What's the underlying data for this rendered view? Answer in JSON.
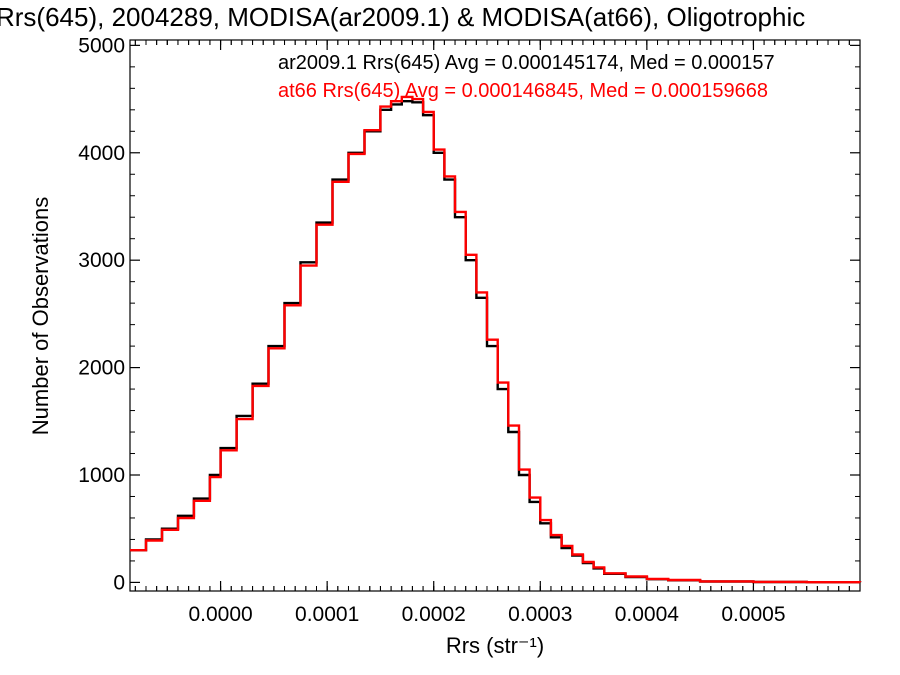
{
  "chart_data": {
    "type": "histogram",
    "title": "Rrs(645), 2004289, MODISA(ar2009.1) & MODISA(at66), Oligotrophic",
    "xlabel": "Rrs (str⁻¹)",
    "ylabel": "Number of Observations",
    "xlim": [
      -8.5e-05,
      0.0006
    ],
    "ylim": [
      -80,
      5050
    ],
    "xticks": [
      0.0,
      0.0001,
      0.0002,
      0.0003,
      0.0004,
      0.0005
    ],
    "xtick_labels": [
      "0.0000",
      "0.0001",
      "0.0002",
      "0.0003",
      "0.0004",
      "0.0005"
    ],
    "yticks": [
      0,
      1000,
      2000,
      3000,
      4000,
      5000
    ],
    "ytick_labels": [
      "0",
      "1000",
      "2000",
      "3000",
      "4000",
      "5000"
    ],
    "grid": false,
    "legend_position": "top-right",
    "series": [
      {
        "name": "ar2009.1",
        "legend_text": "ar2009.1 Rrs(645) Avg = 0.000145174, Med = 0.000157",
        "color": "#000000",
        "x": [
          -8.5e-05,
          -7e-05,
          -5.5e-05,
          -4e-05,
          -2.5e-05,
          -1e-05,
          0.0,
          1.5e-05,
          3e-05,
          4.5e-05,
          6e-05,
          7.5e-05,
          9e-05,
          0.000105,
          0.00012,
          0.000135,
          0.00015,
          0.00016,
          0.00017,
          0.00018,
          0.00019,
          0.0002,
          0.00021,
          0.00022,
          0.00023,
          0.00024,
          0.00025,
          0.00026,
          0.00027,
          0.00028,
          0.00029,
          0.0003,
          0.00031,
          0.00032,
          0.00033,
          0.00034,
          0.00035,
          0.00036,
          0.00038,
          0.0004,
          0.00042,
          0.00045,
          0.0005,
          0.00055,
          0.0006
        ],
        "y": [
          300,
          400,
          500,
          620,
          780,
          1000,
          1250,
          1550,
          1850,
          2200,
          2600,
          2980,
          3350,
          3750,
          4000,
          4200,
          4400,
          4450,
          4480,
          4470,
          4350,
          4000,
          3750,
          3400,
          3000,
          2650,
          2200,
          1800,
          1400,
          1000,
          750,
          550,
          420,
          320,
          250,
          180,
          130,
          80,
          50,
          30,
          20,
          8,
          4,
          2,
          1
        ]
      },
      {
        "name": "at66",
        "legend_text": "at66 Rrs(645) Avg = 0.000146845, Med = 0.000159668",
        "color": "#ff0000",
        "x": [
          -8.5e-05,
          -7e-05,
          -5.5e-05,
          -4e-05,
          -2.5e-05,
          -1e-05,
          0.0,
          1.5e-05,
          3e-05,
          4.5e-05,
          6e-05,
          7.5e-05,
          9e-05,
          0.000105,
          0.00012,
          0.000135,
          0.00015,
          0.00016,
          0.00017,
          0.00018,
          0.00019,
          0.0002,
          0.00021,
          0.00022,
          0.00023,
          0.00024,
          0.00025,
          0.00026,
          0.00027,
          0.00028,
          0.00029,
          0.0003,
          0.00031,
          0.00032,
          0.00033,
          0.00034,
          0.00035,
          0.00036,
          0.00038,
          0.0004,
          0.00042,
          0.00045,
          0.0005,
          0.00055,
          0.0006
        ],
        "y": [
          300,
          390,
          490,
          600,
          760,
          980,
          1230,
          1520,
          1830,
          2180,
          2580,
          2950,
          3330,
          3730,
          3990,
          4210,
          4430,
          4480,
          4520,
          4500,
          4380,
          4030,
          3780,
          3450,
          3050,
          2700,
          2260,
          1860,
          1460,
          1050,
          790,
          580,
          440,
          340,
          260,
          190,
          140,
          85,
          55,
          33,
          22,
          9,
          5,
          2,
          1
        ]
      }
    ]
  }
}
